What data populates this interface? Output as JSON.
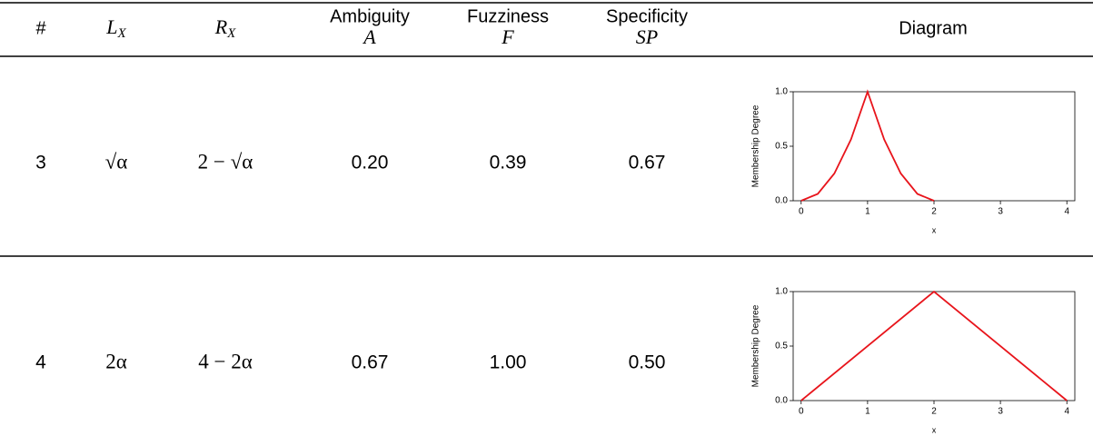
{
  "header": [
    {
      "text": "#"
    },
    {
      "text": "L",
      "sub": "X"
    },
    {
      "text": "R",
      "sub": "X"
    },
    {
      "text": "Ambiguity",
      "symbol": "A"
    },
    {
      "text": "Fuzziness",
      "symbol": "F"
    },
    {
      "text": "Specificity",
      "symbol": "SP"
    },
    {
      "text": "Diagram"
    }
  ],
  "rows": [
    {
      "cells": [
        "3",
        "√α",
        "2 − √α",
        "0.20",
        "0.39",
        "0.67"
      ],
      "diagram": {
        "type": "line",
        "xlabel": "x",
        "ylabel": "Membership Degree",
        "color": "#e8141b",
        "x": [
          0,
          0.25,
          0.5,
          0.75,
          1,
          1.25,
          1.5,
          1.75,
          2
        ],
        "y": [
          0,
          0.0625,
          0.25,
          0.5625,
          1,
          0.5625,
          0.25,
          0.0625,
          0
        ],
        "xlim": [
          -0.12,
          4.12
        ],
        "ylim": [
          0,
          1
        ],
        "xticks": [
          0,
          1,
          2,
          3,
          4
        ],
        "yticks": [
          {
            "value": 0,
            "label": "0.0"
          },
          {
            "value": 0.5,
            "label": "0.5"
          },
          {
            "value": 1,
            "label": "1.0"
          }
        ]
      }
    },
    {
      "cells": [
        "4",
        "2α",
        "4 − 2α",
        "0.67",
        "1.00",
        "0.50"
      ],
      "diagram": {
        "type": "line",
        "xlabel": "x",
        "ylabel": "Membership Degree",
        "color": "#e8141b",
        "x": [
          0,
          2,
          4
        ],
        "y": [
          0,
          1,
          0
        ],
        "xlim": [
          -0.12,
          4.12
        ],
        "ylim": [
          0,
          1
        ],
        "xticks": [
          0,
          1,
          2,
          3,
          4
        ],
        "yticks": [
          {
            "value": 0,
            "label": "0.0"
          },
          {
            "value": 0.5,
            "label": "0.5"
          },
          {
            "value": 1,
            "label": "1.0"
          }
        ]
      }
    }
  ]
}
